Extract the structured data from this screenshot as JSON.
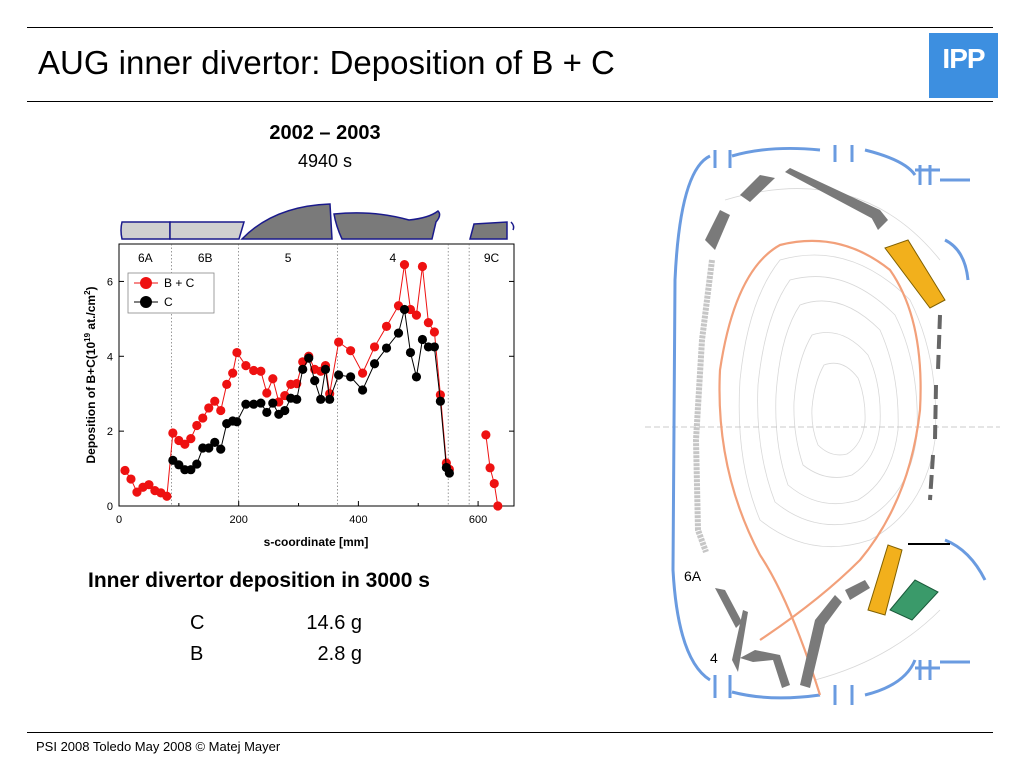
{
  "slide": {
    "title": "AUG inner divertor: Deposition of B + C",
    "logo_text": "IPP",
    "period": "2002 – 2003",
    "duration": "4940 s",
    "inner_heading": "Inner divertor deposition in 3000 s",
    "masses": [
      {
        "element": "C",
        "value": "14.6 g"
      },
      {
        "element": "B",
        "value": "2.8 g"
      }
    ],
    "footer": "PSI 2008 Toledo May 2008 © Matej Mayer",
    "colors": {
      "logo": "#3d8fe0",
      "red_series": "#ee1111",
      "black_series": "#000000",
      "tile": "#7a7a7a",
      "tile_light": "#d0d0d0",
      "tile_edge": "#1a1a8c",
      "vessel": "#6a9be0",
      "separatrix": "#f2a07a"
    }
  },
  "diagram": {
    "labels": [
      "6A",
      "4"
    ]
  },
  "chart_data": {
    "type": "scatter",
    "xlabel": "s-coordinate [mm]",
    "ylabel": "Deposition of B+C (10¹⁹ at./cm²)",
    "xlim": [
      0,
      660
    ],
    "ylim": [
      0,
      7
    ],
    "xticks": [
      0,
      200,
      400,
      600
    ],
    "yticks": [
      0,
      2,
      4,
      6
    ],
    "grid": false,
    "legend_position": "top-left",
    "regions": [
      {
        "label": "6A",
        "from": 0,
        "to": 88
      },
      {
        "label": "6B",
        "from": 88,
        "to": 200
      },
      {
        "label": "5",
        "from": 200,
        "to": 365
      },
      {
        "label": "4",
        "from": 365,
        "to": 550
      },
      {
        "label": "9C",
        "from": 585,
        "to": 660
      }
    ],
    "region_boundaries": [
      88,
      200,
      365,
      550,
      585
    ],
    "series": [
      {
        "name": "B + C",
        "color": "#ee1111",
        "points": [
          [
            10,
            0.95
          ],
          [
            20,
            0.72
          ],
          [
            30,
            0.37
          ],
          [
            40,
            0.5
          ],
          [
            50,
            0.57
          ],
          [
            60,
            0.41
          ],
          [
            70,
            0.35
          ],
          [
            80,
            0.26
          ],
          [
            90,
            1.95
          ],
          [
            100,
            1.75
          ],
          [
            110,
            1.65
          ],
          [
            120,
            1.8
          ],
          [
            130,
            2.15
          ],
          [
            140,
            2.35
          ],
          [
            150,
            2.62
          ],
          [
            160,
            2.8
          ],
          [
            170,
            2.55
          ],
          [
            180,
            3.25
          ],
          [
            190,
            3.55
          ],
          [
            197,
            4.1
          ],
          [
            212,
            3.75
          ],
          [
            225,
            3.62
          ],
          [
            237,
            3.6
          ],
          [
            247,
            3.02
          ],
          [
            257,
            3.4
          ],
          [
            267,
            2.78
          ],
          [
            277,
            2.95
          ],
          [
            287,
            3.25
          ],
          [
            297,
            3.27
          ],
          [
            307,
            3.85
          ],
          [
            317,
            4.0
          ],
          [
            327,
            3.65
          ],
          [
            337,
            3.6
          ],
          [
            345,
            3.75
          ],
          [
            352,
            3.0
          ],
          [
            367,
            4.38
          ],
          [
            387,
            4.15
          ],
          [
            407,
            3.55
          ],
          [
            427,
            4.25
          ],
          [
            447,
            4.8
          ],
          [
            467,
            5.35
          ],
          [
            477,
            6.45
          ],
          [
            487,
            5.25
          ],
          [
            497,
            5.1
          ],
          [
            507,
            6.4
          ],
          [
            517,
            4.9
          ],
          [
            527,
            4.65
          ],
          [
            537,
            2.97
          ],
          [
            547,
            1.15
          ],
          [
            552,
            0.98
          ],
          [
            613,
            1.9
          ],
          [
            620,
            1.02
          ],
          [
            627,
            0.6
          ],
          [
            633,
            0.0
          ]
        ]
      },
      {
        "name": "C",
        "color": "#000000",
        "points": [
          [
            90,
            1.22
          ],
          [
            100,
            1.1
          ],
          [
            110,
            0.97
          ],
          [
            120,
            0.97
          ],
          [
            130,
            1.12
          ],
          [
            140,
            1.55
          ],
          [
            150,
            1.55
          ],
          [
            160,
            1.7
          ],
          [
            170,
            1.52
          ],
          [
            180,
            2.2
          ],
          [
            190,
            2.27
          ],
          [
            197,
            2.25
          ],
          [
            212,
            2.72
          ],
          [
            225,
            2.72
          ],
          [
            237,
            2.75
          ],
          [
            247,
            2.5
          ],
          [
            257,
            2.75
          ],
          [
            267,
            2.45
          ],
          [
            277,
            2.55
          ],
          [
            287,
            2.88
          ],
          [
            297,
            2.85
          ],
          [
            307,
            3.65
          ],
          [
            317,
            3.95
          ],
          [
            327,
            3.35
          ],
          [
            337,
            2.85
          ],
          [
            345,
            3.65
          ],
          [
            352,
            2.85
          ],
          [
            367,
            3.5
          ],
          [
            387,
            3.45
          ],
          [
            407,
            3.1
          ],
          [
            427,
            3.8
          ],
          [
            447,
            4.22
          ],
          [
            467,
            4.62
          ],
          [
            477,
            5.25
          ],
          [
            487,
            4.1
          ],
          [
            497,
            3.45
          ],
          [
            507,
            4.45
          ],
          [
            517,
            4.25
          ],
          [
            527,
            4.25
          ],
          [
            537,
            2.8
          ],
          [
            547,
            1.03
          ],
          [
            552,
            0.88
          ]
        ]
      }
    ]
  }
}
